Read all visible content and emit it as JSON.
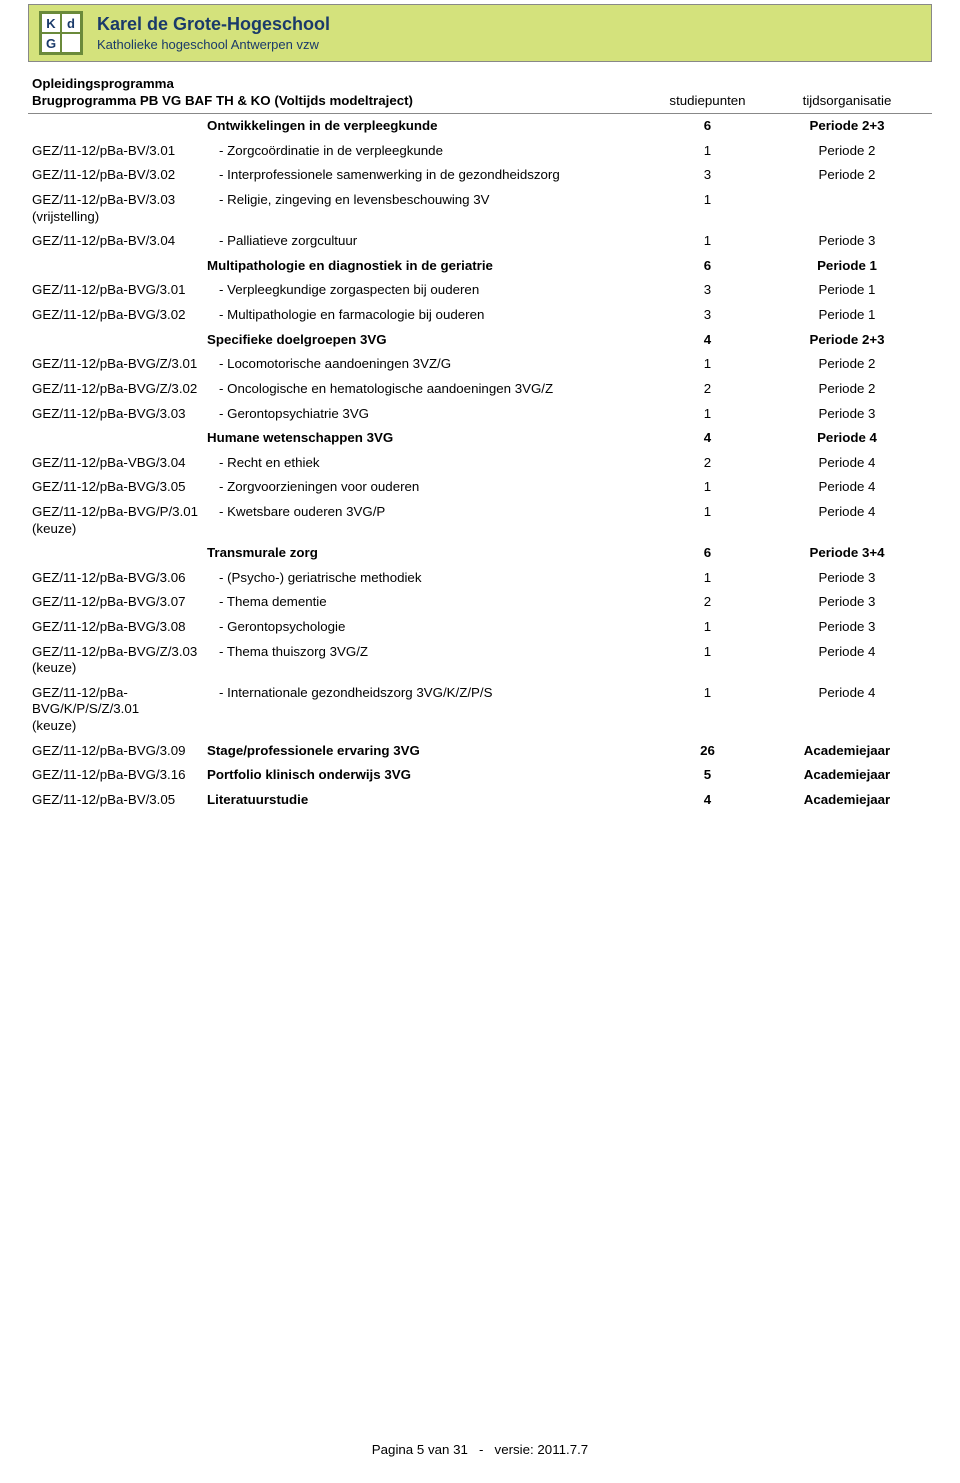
{
  "header": {
    "logo_letters": [
      "K",
      "d",
      "G",
      ""
    ],
    "title": "Karel de Grote-Hogeschool",
    "subtitle": "Katholieke hogeschool Antwerpen vzw"
  },
  "section": {
    "line1": "Opleidingsprogramma",
    "line2": "Brugprogramma PB VG BAF TH & KO (Voltijds modeltraject)",
    "col_pts": "studiepunten",
    "col_time": "tijdsorganisatie"
  },
  "rows": [
    {
      "code": "",
      "title": "Ontwikkelingen in de verpleegkunde",
      "pts": "6",
      "time": "Periode 2+3",
      "bold": true
    },
    {
      "code": "GEZ/11-12/pBa-BV/3.01",
      "title": "- Zorgcoördinatie in de verpleegkunde",
      "pts": "1",
      "time": "Periode 2"
    },
    {
      "code": "GEZ/11-12/pBa-BV/3.02",
      "title": "- Interprofessionele samenwerking in de gezondheidszorg",
      "pts": "3",
      "time": "Periode 2"
    },
    {
      "code": "GEZ/11-12/pBa-BV/3.03",
      "note": "(vrijstelling)",
      "title": "- Religie, zingeving en levensbeschouwing 3V",
      "pts": "1",
      "time": ""
    },
    {
      "code": "GEZ/11-12/pBa-BV/3.04",
      "title": "- Palliatieve zorgcultuur",
      "pts": "1",
      "time": "Periode 3"
    },
    {
      "code": "",
      "title": "Multipathologie en diagnostiek in de geriatrie",
      "pts": "6",
      "time": "Periode 1",
      "bold": true
    },
    {
      "code": "GEZ/11-12/pBa-BVG/3.01",
      "title": "- Verpleegkundige zorgaspecten bij ouderen",
      "pts": "3",
      "time": "Periode 1"
    },
    {
      "code": "GEZ/11-12/pBa-BVG/3.02",
      "title": "- Multipathologie en farmacologie bij ouderen",
      "pts": "3",
      "time": "Periode 1"
    },
    {
      "code": "",
      "title": "Specifieke doelgroepen 3VG",
      "pts": "4",
      "time": "Periode 2+3",
      "bold": true
    },
    {
      "code": "GEZ/11-12/pBa-BVG/Z/3.01",
      "title": "- Locomotorische aandoeningen 3VZ/G",
      "pts": "1",
      "time": "Periode 2"
    },
    {
      "code": "GEZ/11-12/pBa-BVG/Z/3.02",
      "title": "- Oncologische en hematologische aandoeningen 3VG/Z",
      "pts": "2",
      "time": "Periode 2"
    },
    {
      "code": "GEZ/11-12/pBa-BVG/3.03",
      "title": "- Gerontopsychiatrie 3VG",
      "pts": "1",
      "time": "Periode 3"
    },
    {
      "code": "",
      "title": "Humane wetenschappen 3VG",
      "pts": "4",
      "time": "Periode 4",
      "bold": true
    },
    {
      "code": "GEZ/11-12/pBa-VBG/3.04",
      "title": "- Recht en ethiek",
      "pts": "2",
      "time": "Periode 4"
    },
    {
      "code": "GEZ/11-12/pBa-BVG/3.05",
      "title": "- Zorgvoorzieningen voor ouderen",
      "pts": "1",
      "time": "Periode 4"
    },
    {
      "code": "GEZ/11-12/pBa-BVG/P/3.01",
      "note": "(keuze)",
      "title": "- Kwetsbare ouderen 3VG/P",
      "pts": "1",
      "time": "Periode 4"
    },
    {
      "code": "",
      "title": "Transmurale zorg",
      "pts": "6",
      "time": "Periode 3+4",
      "bold": true
    },
    {
      "code": "GEZ/11-12/pBa-BVG/3.06",
      "title": "- (Psycho-) geriatrische methodiek",
      "pts": "1",
      "time": "Periode 3"
    },
    {
      "code": "GEZ/11-12/pBa-BVG/3.07",
      "title": "- Thema dementie",
      "pts": "2",
      "time": "Periode 3"
    },
    {
      "code": "GEZ/11-12/pBa-BVG/3.08",
      "title": "- Gerontopsychologie",
      "pts": "1",
      "time": "Periode 3"
    },
    {
      "code": "GEZ/11-12/pBa-BVG/Z/3.03",
      "note": "(keuze)",
      "title": "- Thema thuiszorg 3VG/Z",
      "pts": "1",
      "time": "Periode 4"
    },
    {
      "code": "GEZ/11-12/pBa-BVG/K/P/S/Z/3.01",
      "note": "(keuze)",
      "title": "- Internationale gezondheidszorg 3VG/K/Z/P/S",
      "pts": "1",
      "time": "Periode 4"
    },
    {
      "code": "GEZ/11-12/pBa-BVG/3.09",
      "title": "Stage/professionele ervaring 3VG",
      "pts": "26",
      "time": "Academiejaar",
      "bold": true
    },
    {
      "code": "GEZ/11-12/pBa-BVG/3.16",
      "title": "Portfolio klinisch onderwijs 3VG",
      "pts": "5",
      "time": "Academiejaar",
      "bold": true
    },
    {
      "code": "GEZ/11-12/pBa-BV/3.05",
      "title": "Literatuurstudie",
      "pts": "4",
      "time": "Academiejaar",
      "bold": true
    }
  ],
  "footer": {
    "left": "Pagina 5 van 31",
    "dash": "-",
    "right": "versie: 2011.7.7"
  },
  "colors": {
    "header_bg": "#d4e27c",
    "header_text": "#1a3a6a",
    "border": "#888888"
  }
}
